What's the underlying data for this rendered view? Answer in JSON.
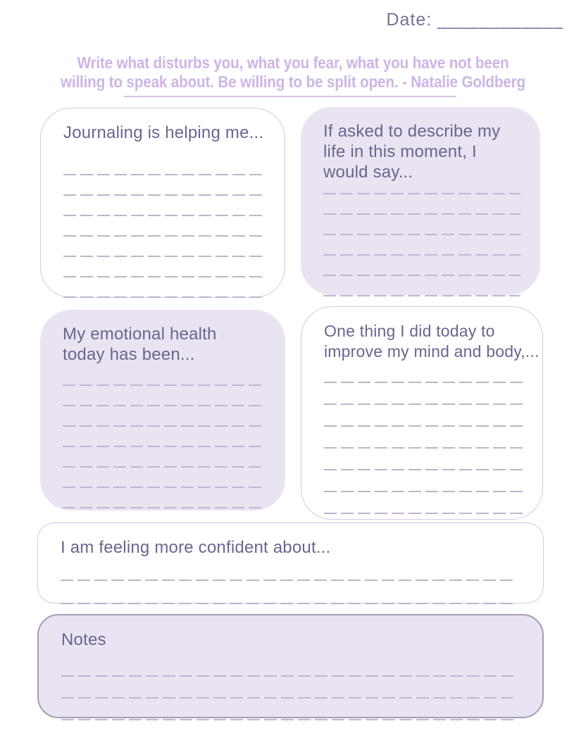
{
  "page": {
    "date": "Date: ____________",
    "quote": {
      "line1": "Write what disturbs you, what you fear, what you have not been",
      "line2": "willing to speak about. Be willing to be split open. - Natalie Goldberg"
    }
  },
  "cards": [
    {
      "id": "journaling",
      "title": "Journaling is helping me...",
      "style": "outlined",
      "lines": 7
    },
    {
      "id": "describe-life",
      "title": "If asked to describe my life in this moment, I would say...",
      "style": "filled",
      "lines": 6
    },
    {
      "id": "emotional-health",
      "title": "My emotional health today has been...",
      "style": "filled",
      "lines": 7
    },
    {
      "id": "improve-mind-body",
      "title": "One thing I did today to improve my mind and body,...",
      "style": "outlined",
      "lines": 7
    },
    {
      "id": "confident",
      "title": "I am feeling more confident about...",
      "style": "outlined",
      "lines": 2
    },
    {
      "id": "notes",
      "title": "Notes",
      "style": "filled-outlined",
      "lines": 3
    }
  ],
  "colors": {
    "card_fill": "#eae3f2",
    "card_outline": "#d7c6ea",
    "notes_outline": "#a49db4",
    "title_text": "#6b6590",
    "date_text": "#777099",
    "quote_text": "#cdb5e6",
    "quote_underline": "#d4c0ea",
    "writing_line": "#bdb4cc"
  }
}
